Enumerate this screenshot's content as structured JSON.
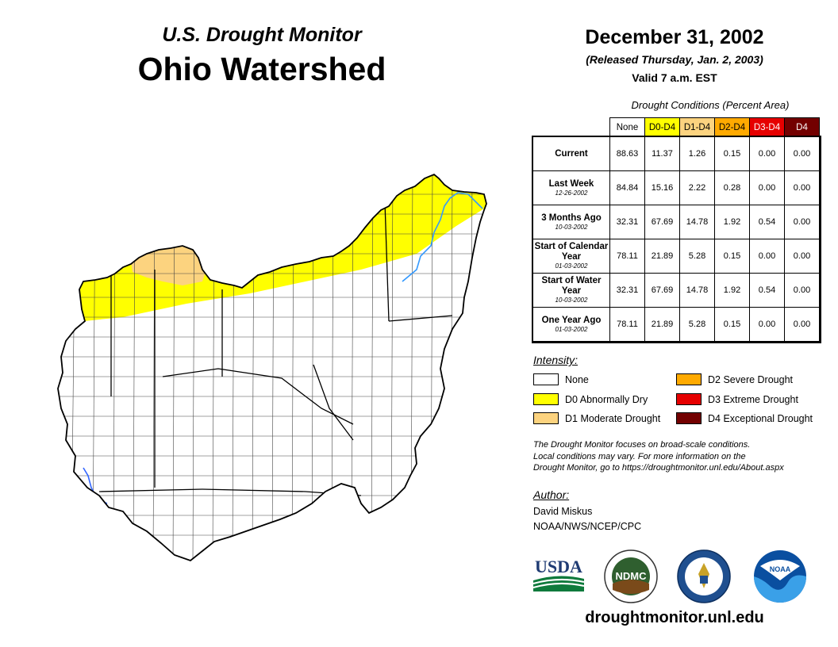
{
  "header": {
    "subtitle": "U.S. Drought Monitor",
    "title": "Ohio Watershed",
    "date": "December 31, 2002",
    "released": "(Released Thursday, Jan. 2, 2003)",
    "valid": "Valid 7 a.m. EST"
  },
  "table": {
    "title": "Drought Conditions (Percent Area)",
    "columns": [
      "None",
      "D0-D4",
      "D1-D4",
      "D2-D4",
      "D3-D4",
      "D4"
    ],
    "rows": [
      {
        "label": "Current",
        "date": "",
        "values": [
          "88.63",
          "11.37",
          "1.26",
          "0.15",
          "0.00",
          "0.00"
        ]
      },
      {
        "label": "Last Week",
        "date": "12-26-2002",
        "values": [
          "84.84",
          "15.16",
          "2.22",
          "0.28",
          "0.00",
          "0.00"
        ]
      },
      {
        "label": "3 Months Ago",
        "date": "10-03-2002",
        "values": [
          "32.31",
          "67.69",
          "14.78",
          "1.92",
          "0.54",
          "0.00"
        ]
      },
      {
        "label": "Start of Calendar Year",
        "date": "01-03-2002",
        "values": [
          "78.11",
          "21.89",
          "5.28",
          "0.15",
          "0.00",
          "0.00"
        ]
      },
      {
        "label": "Start of Water Year",
        "date": "10-03-2002",
        "values": [
          "32.31",
          "67.69",
          "14.78",
          "1.92",
          "0.54",
          "0.00"
        ]
      },
      {
        "label": "One Year Ago",
        "date": "01-03-2002",
        "values": [
          "78.11",
          "21.89",
          "5.28",
          "0.15",
          "0.00",
          "0.00"
        ]
      }
    ]
  },
  "legend": {
    "title": "Intensity:",
    "items": [
      {
        "label": "None",
        "color": "#ffffff"
      },
      {
        "label": "D0 Abnormally Dry",
        "color": "#ffff00"
      },
      {
        "label": "D1 Moderate Drought",
        "color": "#fcd37f"
      },
      {
        "label": "D2 Severe Drought",
        "color": "#ffaa00"
      },
      {
        "label": "D3 Extreme Drought",
        "color": "#e60000"
      },
      {
        "label": "D4 Exceptional Drought",
        "color": "#730000"
      }
    ]
  },
  "note": {
    "line1": "The Drought Monitor focuses on broad-scale conditions.",
    "line2": "Local conditions may vary. For more information on the",
    "line3": "Drought Monitor, go to https://droughtmonitor.unl.edu/About.aspx"
  },
  "author": {
    "heading": "Author:",
    "name": "David Miskus",
    "org": "NOAA/NWS/NCEP/CPC"
  },
  "logos": {
    "usda": "USDA",
    "ndmc": "NDMC",
    "noaa": "NOAA"
  },
  "footer": {
    "url": "droughtmonitor.unl.edu"
  },
  "colors": {
    "none": "#ffffff",
    "d0": "#ffff00",
    "d1": "#fcd37f",
    "d2": "#ffaa00",
    "d3": "#e60000",
    "d4": "#730000",
    "river": "#3399ff"
  }
}
